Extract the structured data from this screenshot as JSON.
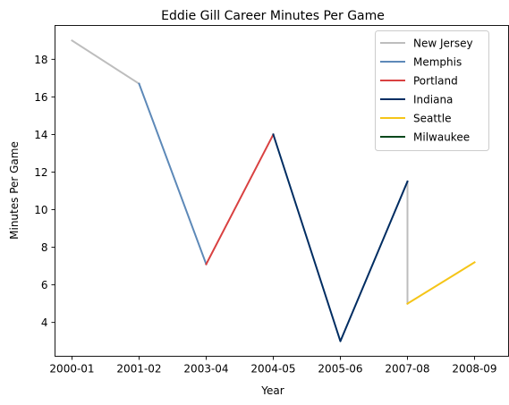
{
  "chart_data": {
    "type": "line",
    "title": "Eddie Gill Career Minutes Per Game",
    "xlabel": "Year",
    "ylabel": "Minutes Per Game",
    "categories": [
      "2000-01",
      "2001-02",
      "2003-04",
      "2004-05",
      "2005-06",
      "2007-08",
      "2008-09"
    ],
    "ylim": [
      2.2,
      19.8
    ],
    "yticks": [
      4,
      6,
      8,
      10,
      12,
      14,
      16,
      18
    ],
    "grid": false,
    "legend_position": "top-right",
    "series": [
      {
        "name": "New Jersey",
        "color": "#bdbdbd",
        "points": [
          {
            "x": "2000-01",
            "y": 19.0
          },
          {
            "x": "2001-02",
            "y": 16.7
          }
        ]
      },
      {
        "name": "New Jersey",
        "color": "#bdbdbd",
        "legend": false,
        "points": [
          {
            "x": "2007-08",
            "y": 11.5
          },
          {
            "x": "2007-08",
            "y": 5.0
          }
        ]
      },
      {
        "name": "Memphis",
        "color": "#5d89b8",
        "points": [
          {
            "x": "2001-02",
            "y": 16.7
          },
          {
            "x": "2003-04",
            "y": 7.1
          }
        ]
      },
      {
        "name": "Portland",
        "color": "#d94141",
        "points": [
          {
            "x": "2003-04",
            "y": 7.1
          },
          {
            "x": "2004-05",
            "y": 14.0
          }
        ]
      },
      {
        "name": "Indiana",
        "color": "#002d62",
        "points": [
          {
            "x": "2004-05",
            "y": 14.0
          },
          {
            "x": "2005-06",
            "y": 3.0
          },
          {
            "x": "2007-08",
            "y": 11.5
          }
        ]
      },
      {
        "name": "Seattle",
        "color": "#f5c518",
        "points": [
          {
            "x": "2007-08",
            "y": 5.0
          },
          {
            "x": "2008-09",
            "y": 7.2
          }
        ]
      },
      {
        "name": "Milwaukee",
        "color": "#00471b",
        "points": []
      }
    ]
  }
}
